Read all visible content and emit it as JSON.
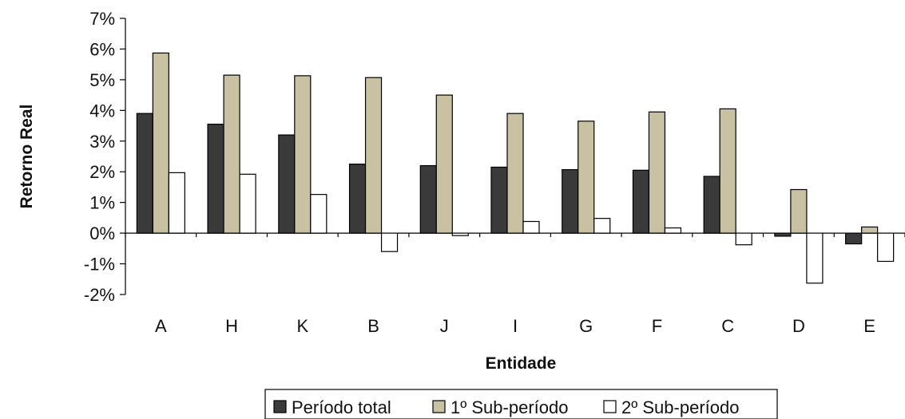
{
  "chart_data": {
    "type": "bar",
    "xlabel": "Entidade",
    "ylabel": "Retorno Real",
    "categories": [
      "A",
      "H",
      "K",
      "B",
      "J",
      "I",
      "G",
      "F",
      "C",
      "D",
      "E"
    ],
    "series": [
      {
        "name": "Período total",
        "color": "#3a3a3a",
        "values": [
          3.9,
          3.55,
          3.2,
          2.25,
          2.2,
          2.15,
          2.07,
          2.05,
          1.85,
          -0.1,
          -0.35
        ]
      },
      {
        "name": "1º Sub-período",
        "color": "#c8c2a2",
        "values": [
          5.87,
          5.15,
          5.13,
          5.07,
          4.5,
          3.9,
          3.65,
          3.95,
          4.05,
          1.42,
          0.2
        ]
      },
      {
        "name": "2º Sub-período",
        "color": "#ffffff",
        "values": [
          1.97,
          1.92,
          1.26,
          -0.6,
          -0.08,
          0.38,
          0.48,
          0.17,
          -0.38,
          -1.63,
          -0.92
        ]
      }
    ],
    "ylim": [
      -2,
      7
    ],
    "ytick_labels": [
      "-2%",
      "-1%",
      "0%",
      "1%",
      "2%",
      "3%",
      "4%",
      "5%",
      "6%",
      "7%"
    ],
    "grid": false,
    "legend_position": "bottom"
  }
}
